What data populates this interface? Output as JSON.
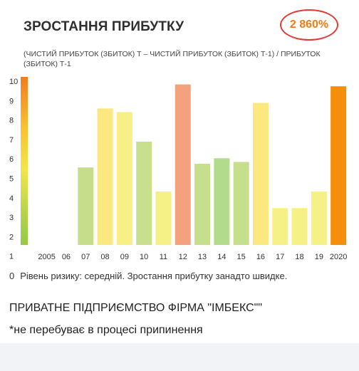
{
  "card": {
    "title": "ЗРОСТАННЯ ПРИБУТКУ",
    "value": "2 860%",
    "value_color": "#ef7d1a",
    "formula": "(ЧИСТИЙ ПРИБУТОК (ЗБИТОК) Т – ЧИСТИЙ ПРИБУТОК (ЗБИТОК) Т-1) / ПРИБУТОК (ЗБИТОК) Т-1",
    "risk_zero": "0",
    "risk_text": "Рівень ризику: середній. Зростання прибутку занадто швидке.",
    "company": "ПРИВАТНЕ ПІДПРИЄМСТВО ФІРМА \"ІМБЕКС\"\"",
    "note": "*не перебуває в процесі припинення"
  },
  "chart_data": {
    "type": "bar",
    "categories": [
      "2005",
      "06",
      "07",
      "08",
      "09",
      "10",
      "11",
      "12",
      "13",
      "14",
      "15",
      "16",
      "17",
      "18",
      "19",
      "2020"
    ],
    "values": [
      null,
      null,
      5.4,
      8.6,
      8.4,
      6.8,
      4.1,
      9.9,
      5.6,
      5.9,
      5.7,
      8.9,
      3.2,
      3.2,
      4.1,
      9.8
    ],
    "colors": [
      null,
      null,
      "#c6dd8c",
      "#fbe87f",
      "#f8ef87",
      "#c8df8d",
      "#f6f187",
      "#f4a17e",
      "#c6df8c",
      "#b3db8c",
      "#c6df8c",
      "#fbe87f",
      "#f6f187",
      "#f6f187",
      "#f6f187",
      "#f58e0a"
    ],
    "ylim": [
      1,
      10
    ],
    "y_ticks": [
      "10",
      "9",
      "8",
      "7",
      "6",
      "5",
      "4",
      "3",
      "2",
      "1"
    ],
    "gradient_colors": [
      "#f07d1e",
      "#f6c230",
      "#f3e64a",
      "#b8d44c",
      "#97c944"
    ]
  }
}
